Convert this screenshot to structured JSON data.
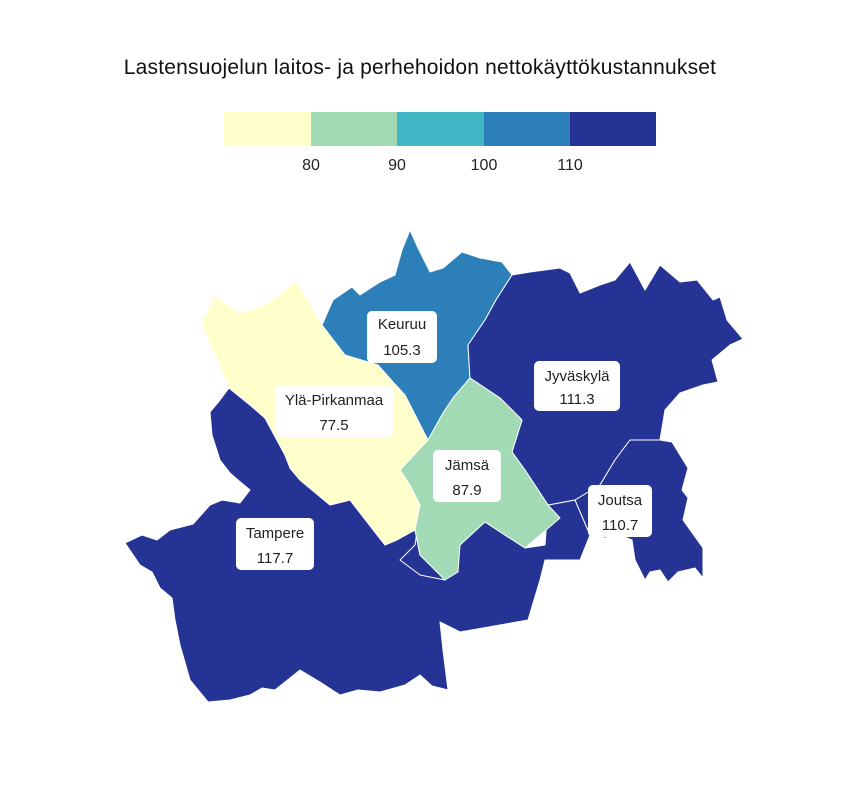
{
  "title": "Lastensuojelun laitos- ja perhehoidon nettokäyttökustannukset",
  "legend": {
    "bins": [
      {
        "color": "#ffffcc"
      },
      {
        "color": "#a1dab4"
      },
      {
        "color": "#41b6c4"
      },
      {
        "color": "#2c7fb8"
      },
      {
        "color": "#253494"
      }
    ],
    "ticks": [
      "80",
      "90",
      "100",
      "110"
    ]
  },
  "regions": [
    {
      "id": "tampere",
      "name": "Tampere",
      "value": "117.7",
      "color": "#253494"
    },
    {
      "id": "jyvaskyla",
      "name": "Jyväskylä",
      "value": "111.3",
      "color": "#253494"
    },
    {
      "id": "joutsa",
      "name": "Joutsa",
      "value": "110.7",
      "color": "#253494"
    },
    {
      "id": "keuruu",
      "name": "Keuruu",
      "value": "105.3",
      "color": "#2c7fb8"
    },
    {
      "id": "jamsa",
      "name": "Jämsä",
      "value": "87.9",
      "color": "#a1dab4"
    },
    {
      "id": "yla-pirkanmaa",
      "name": "Ylä-Pirkanmaa",
      "value": "77.5",
      "color": "#ffffcc"
    }
  ]
}
